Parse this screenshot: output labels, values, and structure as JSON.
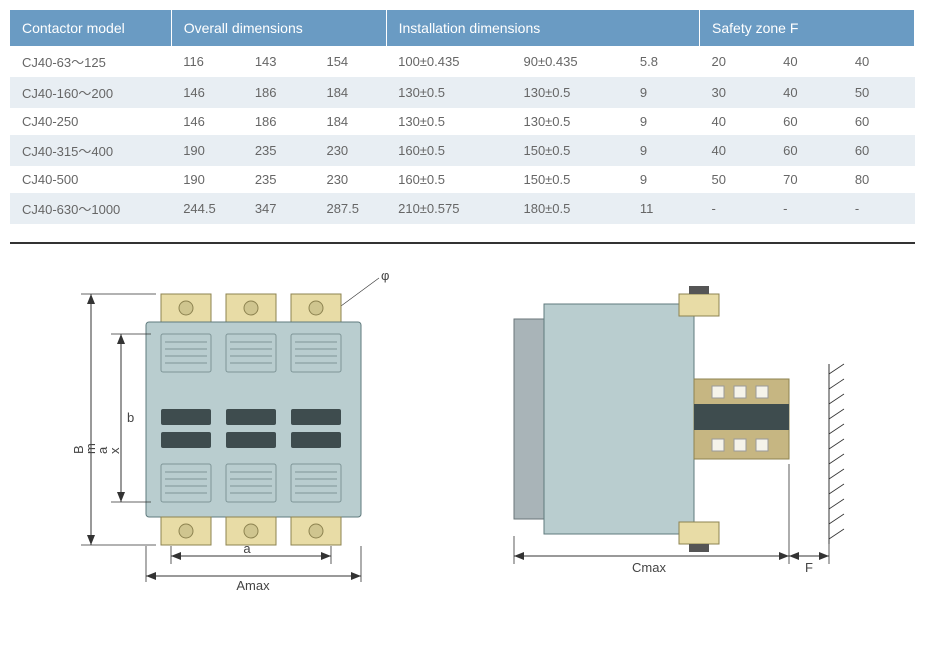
{
  "table": {
    "header_bg": "#6a9bc3",
    "header_text_color": "#ffffff",
    "alt_row_bg": "#e8eef3",
    "font_size_header": 14,
    "font_size_body": 13,
    "headers": [
      {
        "label": "Contactor  model",
        "span": 1
      },
      {
        "label": "Overall dimensions",
        "span": 3
      },
      {
        "label": "Installation dimensions",
        "span": 3
      },
      {
        "label": "Safety zone F",
        "span": 3
      }
    ],
    "col_widths_pct": [
      18,
      8,
      8,
      8,
      14,
      13,
      8,
      8,
      8,
      8
    ],
    "rows": [
      [
        "CJ40-63～125",
        "116",
        "143",
        "154",
        "100±0.435",
        "90±0.435",
        "5.8",
        "20",
        "40",
        "40"
      ],
      [
        "CJ40-160～200",
        "146",
        "186",
        "184",
        "130±0.5",
        "130±0.5",
        "9",
        "30",
        "40",
        "50"
      ],
      [
        "CJ40-250",
        "146",
        "186",
        "184",
        "130±0.5",
        "130±0.5",
        "9",
        "40",
        "60",
        "60"
      ],
      [
        "CJ40-315～400",
        "190",
        "235",
        "230",
        "160±0.5",
        "150±0.5",
        "9",
        "40",
        "60",
        "60"
      ],
      [
        "CJ40-500",
        "190",
        "235",
        "230",
        "160±0.5",
        "150±0.5",
        "9",
        "50",
        "70",
        "80"
      ],
      [
        "CJ40-630～1000",
        "244.5",
        "347",
        "287.5",
        "210±0.575",
        "180±0.5",
        "11",
        "-",
        "-",
        "-"
      ]
    ]
  },
  "diagram": {
    "background_color": "#ffffff",
    "device_body_color": "#b9cdcf",
    "device_stroke_color": "#5f7a7d",
    "terminal_color": "#e8dca6",
    "terminal_stroke": "#8d8350",
    "dark_label_color": "#3e4c4e",
    "dim_line_color": "#333333",
    "label_font_size": 13,
    "front": {
      "labels": {
        "phi": "φ",
        "Bmax_vert": "Bmax",
        "b": "b",
        "a": "a",
        "Amax": "Amax"
      }
    },
    "side": {
      "labels": {
        "Cmax": "Cmax",
        "F": "F"
      }
    }
  }
}
